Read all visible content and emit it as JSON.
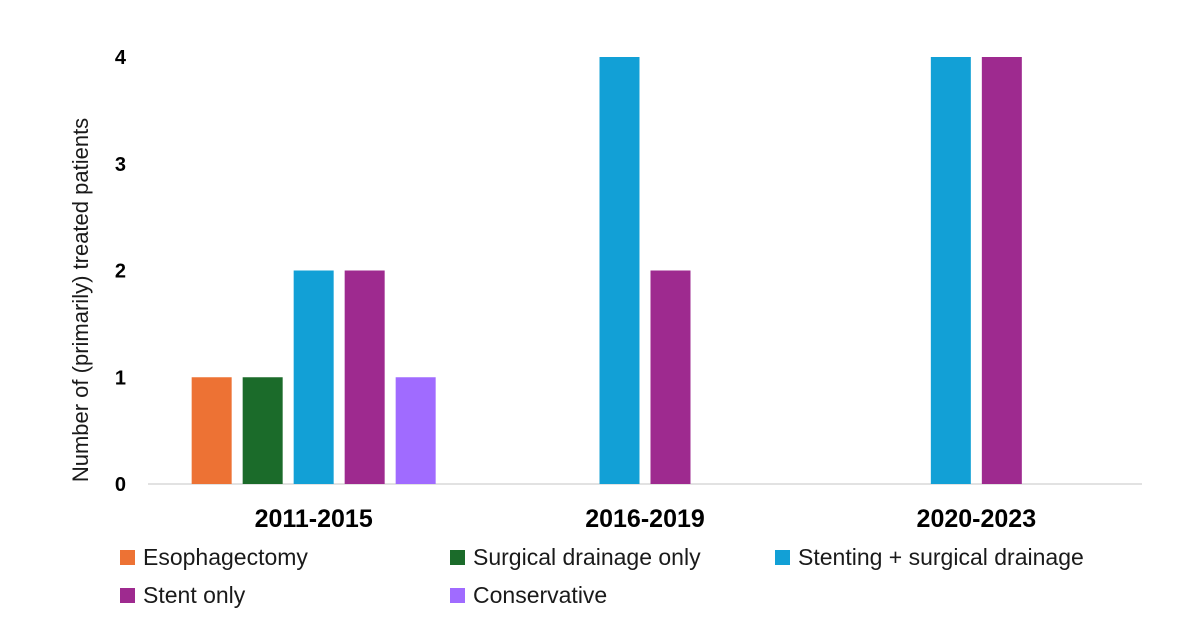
{
  "chart_data": {
    "type": "bar",
    "title": "",
    "xlabel": "",
    "ylabel": "Number of (primarily) treated patients",
    "ylim": [
      0,
      4
    ],
    "yticks": [
      "0",
      "1",
      "2",
      "3",
      "4"
    ],
    "grid": false,
    "legend_position": "bottom",
    "categories": [
      "2011-2015",
      "2016-2019",
      "2020-2023"
    ],
    "series": [
      {
        "name": "Esophagectomy",
        "color": "#ed7234",
        "values": [
          1,
          0,
          0
        ]
      },
      {
        "name": "Surgical drainage only",
        "color": "#1b6b2a",
        "values": [
          1,
          0,
          0
        ]
      },
      {
        "name": "Stenting + surgical drainage",
        "color": "#12a0d6",
        "values": [
          2,
          4,
          4
        ]
      },
      {
        "name": "Stent only",
        "color": "#9e2a8f",
        "values": [
          2,
          2,
          4
        ]
      },
      {
        "name": "Conservative",
        "color": "#a06bff",
        "values": [
          1,
          0,
          0
        ]
      }
    ]
  }
}
